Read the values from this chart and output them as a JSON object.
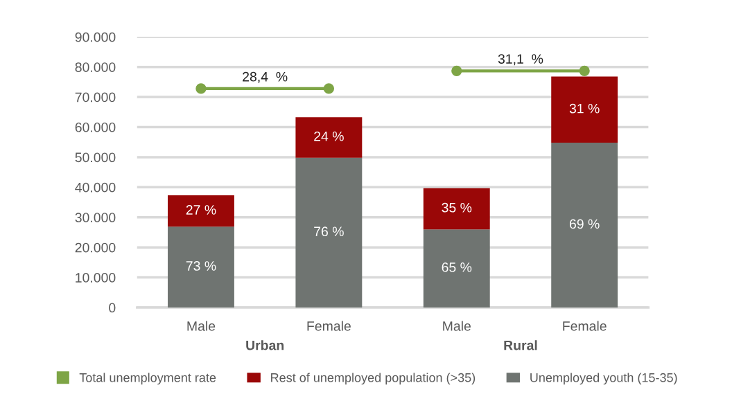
{
  "chart_data": {
    "type": "bar",
    "stacked": true,
    "categories": [
      "Male",
      "Female",
      "Male",
      "Female"
    ],
    "series": [
      {
        "name": "Unemployed youth (15-35)",
        "color": "#6f7471",
        "values": [
          26900,
          49800,
          26000,
          54800
        ]
      },
      {
        "name": "Rest of unemployed population (>35)",
        "color": "#9a0707",
        "values": [
          10400,
          13500,
          13700,
          22000
        ]
      },
      {
        "name": "Total unemployment rate",
        "type": "line",
        "color": "#7ea546",
        "marker": "circle",
        "values": [
          72800,
          72800,
          null,
          null
        ]
      },
      {
        "type": "line",
        "color": "#7ea546",
        "marker": "circle",
        "values": [
          null,
          null,
          78700,
          78700
        ]
      }
    ],
    "annotations": [
      "28,4  %",
      "31,1  %",
      "Urban",
      "Rural",
      "73 %",
      "76 %",
      "65 %",
      "69 %",
      "27 %",
      "24 %",
      "35 %",
      "31 %"
    ],
    "ylim": [
      0,
      90000
    ],
    "yticks": [
      0,
      {
        "value": 10000,
        "label": "10.000"
      },
      {
        "value": 20000,
        "label": "20.000"
      },
      {
        "value": 30000,
        "label": "30.000"
      },
      {
        "value": 40000,
        "label": "40.000"
      },
      {
        "value": 50000,
        "label": "50.000"
      },
      {
        "value": 60000,
        "label": "60.000"
      },
      {
        "value": 70000,
        "label": "70.000"
      },
      {
        "value": 80000,
        "label": "80.000"
      },
      {
        "value": 90000,
        "label": "90.000"
      }
    ],
    "grid": "y",
    "legend": "bottom"
  }
}
